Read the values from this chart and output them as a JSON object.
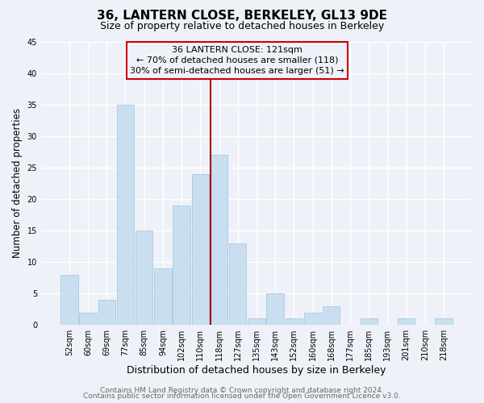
{
  "title": "36, LANTERN CLOSE, BERKELEY, GL13 9DE",
  "subtitle": "Size of property relative to detached houses in Berkeley",
  "xlabel": "Distribution of detached houses by size in Berkeley",
  "ylabel": "Number of detached properties",
  "bar_labels": [
    "52sqm",
    "60sqm",
    "69sqm",
    "77sqm",
    "85sqm",
    "94sqm",
    "102sqm",
    "110sqm",
    "118sqm",
    "127sqm",
    "135sqm",
    "143sqm",
    "152sqm",
    "160sqm",
    "168sqm",
    "177sqm",
    "185sqm",
    "193sqm",
    "201sqm",
    "210sqm",
    "218sqm"
  ],
  "bar_values": [
    8,
    2,
    4,
    35,
    15,
    9,
    19,
    24,
    27,
    13,
    1,
    5,
    1,
    2,
    3,
    0,
    1,
    0,
    1,
    0,
    1
  ],
  "bar_color": "#c9dff0",
  "bar_edge_color": "#a8c8e8",
  "ylim": [
    0,
    45
  ],
  "yticks": [
    0,
    5,
    10,
    15,
    20,
    25,
    30,
    35,
    40,
    45
  ],
  "vline_color": "#aa0000",
  "annotation_line1": "36 LANTERN CLOSE: 121sqm",
  "annotation_line2": "← 70% of detached houses are smaller (118)",
  "annotation_line3": "30% of semi-detached houses are larger (51) →",
  "box_edge_color": "#cc0000",
  "footer_line1": "Contains HM Land Registry data © Crown copyright and database right 2024.",
  "footer_line2": "Contains public sector information licensed under the Open Government Licence v3.0.",
  "background_color": "#eef2f8",
  "grid_color": "#ffffff",
  "title_fontsize": 11,
  "subtitle_fontsize": 9,
  "xlabel_fontsize": 9,
  "ylabel_fontsize": 8.5,
  "tick_fontsize": 7,
  "annotation_fontsize": 8,
  "footer_fontsize": 6.5
}
